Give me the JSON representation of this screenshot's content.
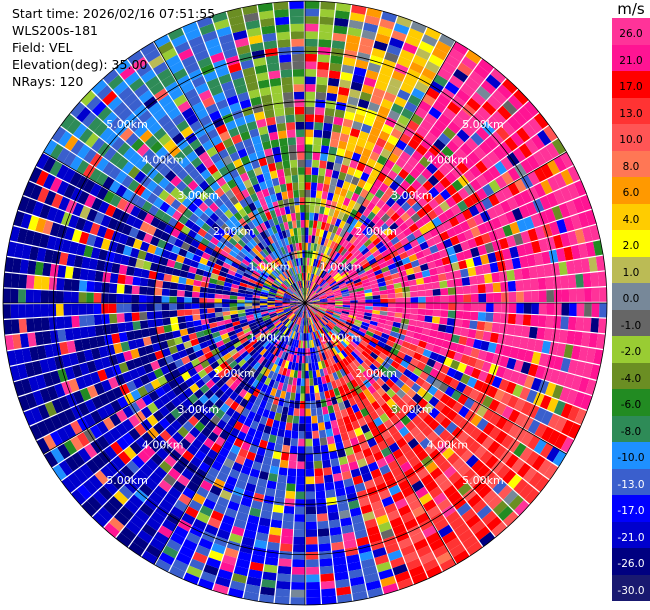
{
  "info": {
    "start_time": "Start time: 2026/02/16 07:51:55",
    "station": "WLS200s-181",
    "field": "Field: VEL",
    "elevation": "Elevation(deg): 35.00",
    "nrays": "NRays: 120"
  },
  "chart_data": {
    "type": "heatmap",
    "projection": "polar-ppi",
    "field": "VEL",
    "units": "m/s",
    "elevation_deg": 35.0,
    "n_rays": 120,
    "range_km": [
      0,
      6
    ],
    "range_rings_km": [
      1,
      2,
      3,
      4,
      5
    ],
    "ring_labels": [
      "1.00km",
      "2.00km",
      "3.00km",
      "4.00km",
      "5.00km"
    ],
    "spoke_angles_deg": [
      0,
      30,
      60,
      90,
      120,
      150,
      180,
      210,
      240,
      270,
      300,
      330
    ],
    "colorbar": {
      "unit": "m/s",
      "levels": [
        "26.0",
        "21.0",
        "17.0",
        "13.0",
        "10.0",
        "8.0",
        "6.0",
        "4.0",
        "2.0",
        "1.0",
        "0.0",
        "-1.0",
        "-2.0",
        "-4.0",
        "-6.0",
        "-8.0",
        "-10.0",
        "-13.0",
        "-17.0",
        "-21.0",
        "-26.0",
        "-30.0"
      ],
      "colors": [
        "#ff3399",
        "#ff1493",
        "#ff0000",
        "#ff3333",
        "#ff5555",
        "#ff7755",
        "#ff9900",
        "#ffcc00",
        "#ffff00",
        "#bbbb55",
        "#778899",
        "#666666",
        "#99cc33",
        "#6b8e23",
        "#228b22",
        "#2e8b57",
        "#1e90ff",
        "#3a5fcd",
        "#0000ff",
        "#0000cd",
        "#000080",
        "#191970"
      ]
    },
    "sectors": [
      {
        "az_from": 300,
        "az_to": 345,
        "velocity": -12,
        "note": "blue/navy dominant"
      },
      {
        "az_from": 345,
        "az_to": 10,
        "velocity": -5
      },
      {
        "az_from": 10,
        "az_to": 30,
        "velocity": 3
      },
      {
        "az_from": 30,
        "az_to": 80,
        "velocity": 20
      },
      {
        "az_from": 80,
        "az_to": 110,
        "velocity": 22
      },
      {
        "az_from": 110,
        "az_to": 165,
        "velocity": 12
      },
      {
        "az_from": 165,
        "az_to": 210,
        "velocity": -18
      },
      {
        "az_from": 210,
        "az_to": 300,
        "velocity": -26
      }
    ]
  }
}
